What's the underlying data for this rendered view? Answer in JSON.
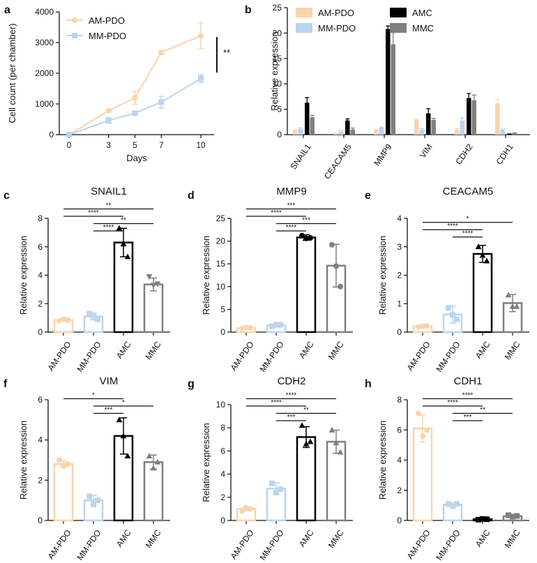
{
  "chart_data": [
    {
      "id": "a",
      "panel_label": "a",
      "type": "line",
      "title": "",
      "xlabel": "Days",
      "ylabel": "Cell count (per chamber)",
      "x": [
        0,
        3,
        5,
        7,
        10
      ],
      "ylim": [
        0,
        4000
      ],
      "yticks": [
        0,
        1000,
        2000,
        3000,
        4000
      ],
      "yticklabels": [
        "0",
        "1000",
        "2000",
        "3000",
        "4000"
      ],
      "xticklabels": [
        "0",
        "3",
        "5",
        "7",
        "10"
      ],
      "legend_position": "top-left",
      "series": [
        {
          "name": "AM-PDO",
          "color": "#F8D4AE",
          "marker": "circle",
          "values": [
            0,
            780,
            1200,
            2680,
            3220
          ],
          "errors": [
            0,
            40,
            210,
            60,
            420
          ]
        },
        {
          "name": "MM-PDO",
          "color": "#BCD4EE",
          "marker": "square",
          "values": [
            0,
            460,
            700,
            1060,
            1830
          ],
          "errors": [
            0,
            90,
            40,
            190,
            130
          ]
        }
      ],
      "significance": "**"
    },
    {
      "id": "b",
      "panel_label": "b",
      "type": "bar",
      "title": "",
      "xlabel": "",
      "ylabel": "Relative expression",
      "categories": [
        "SNAIL1",
        "CEACAM5",
        "MMP9",
        "VIM",
        "CDH2",
        "CDH1"
      ],
      "ylim": [
        0,
        25
      ],
      "yticks": [
        0,
        5,
        10,
        15,
        20,
        25
      ],
      "yticklabels": [
        "0",
        "5",
        "10",
        "15",
        "20",
        "25"
      ],
      "legend_position": "top",
      "series": [
        {
          "name": "AM-PDO",
          "color": "#F8D4AE",
          "values": [
            0.8,
            0.2,
            0.9,
            2.8,
            1.0,
            6.1
          ],
          "errors": [
            0.1,
            0.05,
            0.1,
            0.2,
            0.2,
            0.9
          ]
        },
        {
          "name": "MM-PDO",
          "color": "#BCD4EE",
          "values": [
            1.1,
            0.6,
            1.4,
            1.0,
            2.8,
            1.0
          ],
          "errors": [
            0.2,
            0.3,
            0.1,
            0.2,
            0.5,
            0.1
          ]
        },
        {
          "name": "AMC",
          "color": "#000000",
          "values": [
            6.3,
            2.8,
            20.8,
            4.2,
            7.2,
            0.1
          ],
          "errors": [
            1.0,
            0.3,
            0.6,
            0.9,
            0.9,
            0.05
          ]
        },
        {
          "name": "MMC",
          "color": "#7F7F7F",
          "values": [
            3.4,
            1.0,
            17.8,
            2.9,
            6.8,
            0.3
          ],
          "errors": [
            0.4,
            0.3,
            2.3,
            0.3,
            1.0,
            0.05
          ]
        }
      ]
    },
    {
      "id": "c",
      "panel_label": "c",
      "type": "bar",
      "title": "SNAIL1",
      "xlabel": "",
      "ylabel": "Relative expression",
      "categories": [
        "AM-PDO",
        "MM-PDO",
        "AMC",
        "MMC"
      ],
      "ylim": [
        0,
        8
      ],
      "yticks": [
        0,
        2,
        4,
        6,
        8
      ],
      "yticklabels": [
        "0",
        "2",
        "4",
        "6",
        "8"
      ],
      "values": [
        0.85,
        1.1,
        6.3,
        3.35
      ],
      "errors": [
        0.1,
        0.25,
        1.0,
        0.45
      ],
      "points": [
        [
          0.8,
          0.9,
          0.85
        ],
        [
          1.3,
          1.1,
          0.9
        ],
        [
          7.3,
          6.2,
          5.3
        ],
        [
          3.9,
          3.3,
          3.4
        ]
      ],
      "colors": [
        "#F8D4AE",
        "#BCD4EE",
        "#000000",
        "#7F7F7F"
      ],
      "markers": [
        "circle",
        "square",
        "triangle",
        "triangle-down"
      ],
      "comparisons": [
        {
          "from": 0,
          "to": 3,
          "label": "**"
        },
        {
          "from": 0,
          "to": 2,
          "label": "****"
        },
        {
          "from": 1,
          "to": 3,
          "label": "**"
        },
        {
          "from": 1,
          "to": 2,
          "label": "****"
        }
      ]
    },
    {
      "id": "d",
      "panel_label": "d",
      "type": "bar",
      "title": "MMP9",
      "xlabel": "",
      "ylabel": "Relative expression",
      "categories": [
        "AM-PDO",
        "MM-PDO",
        "AMC",
        "MMC"
      ],
      "ylim": [
        0,
        25
      ],
      "yticks": [
        0,
        5,
        10,
        15,
        20,
        25
      ],
      "yticklabels": [
        "0",
        "5",
        "10",
        "15",
        "20",
        "25"
      ],
      "values": [
        0.9,
        1.5,
        20.8,
        14.6
      ],
      "errors": [
        0.1,
        0.2,
        0.6,
        4.7
      ],
      "points": [
        [
          0.8,
          1.0,
          0.9
        ],
        [
          1.3,
          1.6,
          1.6
        ],
        [
          21.2,
          20.6,
          20.7
        ],
        [
          19.2,
          14.5,
          10.0
        ]
      ],
      "colors": [
        "#F8D4AE",
        "#BCD4EE",
        "#000000",
        "#7F7F7F"
      ],
      "markers": [
        "circle",
        "square",
        "circle",
        "circle"
      ],
      "comparisons": [
        {
          "from": 0,
          "to": 3,
          "label": "***"
        },
        {
          "from": 0,
          "to": 2,
          "label": "****"
        },
        {
          "from": 1,
          "to": 3,
          "label": "***"
        },
        {
          "from": 1,
          "to": 2,
          "label": "****"
        }
      ]
    },
    {
      "id": "e",
      "panel_label": "e",
      "type": "bar",
      "title": "CEACAM5",
      "xlabel": "",
      "ylabel": "Relative expression",
      "categories": [
        "AM-PDO",
        "MM-PDO",
        "AMC",
        "MMC"
      ],
      "ylim": [
        0,
        4
      ],
      "yticks": [
        0,
        1,
        2,
        3,
        4
      ],
      "yticklabels": [
        "0",
        "1",
        "2",
        "3",
        "4"
      ],
      "values": [
        0.2,
        0.62,
        2.75,
        1.02
      ],
      "errors": [
        0.02,
        0.3,
        0.3,
        0.3
      ],
      "points": [
        [
          0.18,
          0.2,
          0.22
        ],
        [
          0.85,
          0.6,
          0.45
        ],
        [
          3.0,
          2.7,
          2.5
        ],
        [
          1.3,
          0.9,
          0.9
        ]
      ],
      "colors": [
        "#F8D4AE",
        "#BCD4EE",
        "#000000",
        "#7F7F7F"
      ],
      "markers": [
        "circle",
        "square",
        "triangle",
        "triangle"
      ],
      "comparisons": [
        {
          "from": 0,
          "to": 3,
          "label": "*"
        },
        {
          "from": 0,
          "to": 2,
          "label": "****"
        },
        {
          "from": 1,
          "to": 2,
          "label": "****"
        }
      ]
    },
    {
      "id": "f",
      "panel_label": "f",
      "type": "bar",
      "title": "VIM",
      "xlabel": "",
      "ylabel": "Relative expression",
      "categories": [
        "AM-PDO",
        "MM-PDO",
        "AMC",
        "MMC"
      ],
      "ylim": [
        0,
        6
      ],
      "yticks": [
        0,
        2,
        4,
        6
      ],
      "yticklabels": [
        "0",
        "2",
        "4",
        "6"
      ],
      "values": [
        2.8,
        1.0,
        4.2,
        2.9
      ],
      "errors": [
        0.15,
        0.25,
        0.9,
        0.35
      ],
      "points": [
        [
          3.0,
          2.7,
          2.8
        ],
        [
          1.2,
          0.8,
          1.0
        ],
        [
          5.0,
          4.2,
          3.2
        ],
        [
          3.2,
          2.6,
          2.9
        ]
      ],
      "colors": [
        "#F8D4AE",
        "#BCD4EE",
        "#000000",
        "#7F7F7F"
      ],
      "markers": [
        "circle",
        "square",
        "triangle",
        "triangle"
      ],
      "comparisons": [
        {
          "from": 0,
          "to": 2,
          "label": "*"
        },
        {
          "from": 1,
          "to": 3,
          "label": "*"
        },
        {
          "from": 1,
          "to": 2,
          "label": "***"
        }
      ]
    },
    {
      "id": "g",
      "panel_label": "g",
      "type": "bar",
      "title": "CDH2",
      "xlabel": "",
      "ylabel": "Relative expression",
      "categories": [
        "AM-PDO",
        "MM-PDO",
        "AMC",
        "MMC"
      ],
      "ylim": [
        0,
        10
      ],
      "yticks": [
        0,
        2,
        4,
        6,
        8,
        10
      ],
      "yticklabels": [
        "0",
        "2",
        "4",
        "6",
        "8",
        "10"
      ],
      "values": [
        1.0,
        2.75,
        7.2,
        6.8
      ],
      "errors": [
        0.15,
        0.5,
        0.9,
        1.0
      ],
      "points": [
        [
          0.8,
          1.1,
          1.0
        ],
        [
          3.2,
          2.4,
          2.7
        ],
        [
          8.2,
          6.6,
          6.8
        ],
        [
          7.8,
          6.7,
          5.9
        ]
      ],
      "colors": [
        "#F8D4AE",
        "#BCD4EE",
        "#000000",
        "#7F7F7F"
      ],
      "markers": [
        "circle",
        "square",
        "triangle",
        "triangle"
      ],
      "comparisons": [
        {
          "from": 0,
          "to": 3,
          "label": "****"
        },
        {
          "from": 0,
          "to": 2,
          "label": "****"
        },
        {
          "from": 1,
          "to": 3,
          "label": "**"
        },
        {
          "from": 1,
          "to": 2,
          "label": "***"
        }
      ]
    },
    {
      "id": "h",
      "panel_label": "h",
      "type": "bar",
      "title": "CDH1",
      "xlabel": "",
      "ylabel": "Relative expression",
      "categories": [
        "AM-PDO",
        "MM-PDO",
        "AMC",
        "MMC"
      ],
      "ylim": [
        0,
        8
      ],
      "yticks": [
        0,
        2,
        4,
        6,
        8
      ],
      "yticklabels": [
        "0",
        "2",
        "4",
        "6",
        "8"
      ],
      "values": [
        6.1,
        1.05,
        0.08,
        0.28
      ],
      "errors": [
        0.9,
        0.12,
        0.05,
        0.08
      ],
      "points": [
        [
          7.1,
          5.6,
          6.0
        ],
        [
          1.1,
          0.95,
          1.1
        ],
        [
          0.05,
          0.1,
          0.08
        ],
        [
          0.35,
          0.25,
          0.3
        ]
      ],
      "colors": [
        "#F8D4AE",
        "#BCD4EE",
        "#000000",
        "#7F7F7F"
      ],
      "markers": [
        "circle",
        "square",
        "square",
        "square"
      ],
      "comparisons": [
        {
          "from": 0,
          "to": 3,
          "label": "****"
        },
        {
          "from": 0,
          "to": 2,
          "label": "****"
        },
        {
          "from": 1,
          "to": 3,
          "label": "**"
        },
        {
          "from": 1,
          "to": 2,
          "label": "***"
        }
      ]
    }
  ]
}
